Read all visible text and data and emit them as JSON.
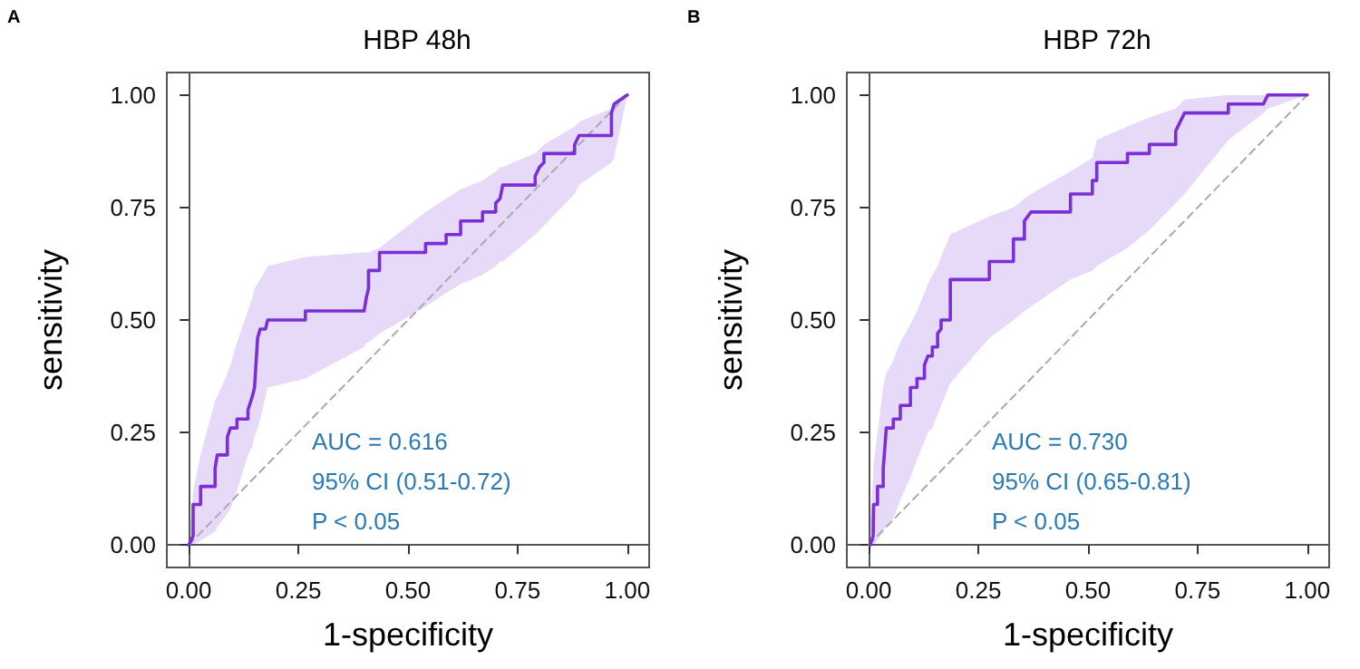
{
  "chart_data": [
    {
      "type": "line",
      "title": "HBP 48h",
      "xlabel": "1-specificity",
      "ylabel": "sensitivity",
      "annotations": [
        "A",
        "AUC = 0.616",
        "95% CI (0.51-0.72)",
        "P < 0.05"
      ],
      "xlim": [
        -0.05,
        1.05
      ],
      "ylim": [
        -0.05,
        1.05
      ],
      "xticks": [
        {
          "value": 0,
          "label": "0.00"
        },
        {
          "value": 0.25,
          "label": "0.25"
        },
        {
          "value": 0.5,
          "label": "0.50"
        },
        {
          "value": 0.75,
          "label": "0.75"
        },
        {
          "value": 1,
          "label": "1.00"
        }
      ],
      "yticks": [
        {
          "value": 0,
          "label": "0.00"
        },
        {
          "value": 0.25,
          "label": "0.25"
        },
        {
          "value": 0.5,
          "label": "0.50"
        },
        {
          "value": 0.75,
          "label": "0.75"
        },
        {
          "value": 1,
          "label": "1.00"
        }
      ],
      "series": [
        {
          "type": "line",
          "color": "#aaaaaa",
          "line_style": "dashed",
          "x": [
            0,
            1
          ],
          "values": [
            0,
            1
          ]
        },
        {
          "type": "line",
          "color": "#7b2fd6",
          "line_style": "solid",
          "x": [
            0,
            0.01,
            0.01,
            0.027,
            0.027,
            0.06,
            0.06,
            0.065,
            0.088,
            0.088,
            0.095,
            0.11,
            0.11,
            0.135,
            0.135,
            0.145,
            0.15,
            0.157,
            0.163,
            0.175,
            0.18,
            0.266,
            0.266,
            0.4,
            0.405,
            0.41,
            0.41,
            0.435,
            0.435,
            0.54,
            0.54,
            0.587,
            0.587,
            0.62,
            0.62,
            0.67,
            0.67,
            0.7,
            0.7,
            0.71,
            0.716,
            0.79,
            0.79,
            0.8,
            0.81,
            0.81,
            0.88,
            0.88,
            0.89,
            0.964,
            0.964,
            0.97,
            1
          ],
          "values": [
            0,
            0.02,
            0.09,
            0.09,
            0.13,
            0.13,
            0.17,
            0.2,
            0.2,
            0.24,
            0.26,
            0.26,
            0.28,
            0.28,
            0.3,
            0.33,
            0.35,
            0.46,
            0.48,
            0.48,
            0.5,
            0.5,
            0.52,
            0.52,
            0.55,
            0.57,
            0.61,
            0.61,
            0.65,
            0.65,
            0.67,
            0.67,
            0.69,
            0.69,
            0.72,
            0.72,
            0.74,
            0.74,
            0.76,
            0.77,
            0.8,
            0.8,
            0.82,
            0.84,
            0.85,
            0.87,
            0.87,
            0.89,
            0.91,
            0.91,
            0.96,
            0.98,
            1
          ],
          "lower": [
            0,
            0,
            0,
            0.01,
            0.01,
            0.03,
            0.03,
            0.04,
            0.07,
            0.07,
            0.08,
            0.12,
            0.12,
            0.2,
            0.2,
            0.22,
            0.24,
            0.26,
            0.28,
            0.33,
            0.35,
            0.37,
            0.37,
            0.44,
            0.45,
            0.45,
            0.45,
            0.47,
            0.47,
            0.53,
            0.53,
            0.56,
            0.56,
            0.58,
            0.58,
            0.6,
            0.6,
            0.62,
            0.62,
            0.63,
            0.63,
            0.69,
            0.69,
            0.7,
            0.71,
            0.71,
            0.78,
            0.78,
            0.8,
            0.85,
            0.85,
            0.86,
            1
          ],
          "upper": [
            0,
            0.12,
            0.12,
            0.2,
            0.2,
            0.32,
            0.32,
            0.33,
            0.38,
            0.38,
            0.4,
            0.45,
            0.45,
            0.52,
            0.52,
            0.55,
            0.57,
            0.58,
            0.59,
            0.61,
            0.62,
            0.64,
            0.64,
            0.65,
            0.65,
            0.65,
            0.65,
            0.66,
            0.66,
            0.74,
            0.74,
            0.77,
            0.77,
            0.79,
            0.79,
            0.81,
            0.81,
            0.83,
            0.83,
            0.84,
            0.84,
            0.87,
            0.87,
            0.88,
            0.89,
            0.89,
            0.93,
            0.93,
            0.94,
            0.97,
            0.97,
            0.98,
            1
          ]
        }
      ]
    },
    {
      "type": "line",
      "title": "HBP 72h",
      "xlabel": "1-specificity",
      "ylabel": "sensitivity",
      "annotations": [
        "B",
        "AUC = 0.730",
        "95% CI (0.65-0.81)",
        "P < 0.05"
      ],
      "xlim": [
        -0.05,
        1.05
      ],
      "ylim": [
        -0.05,
        1.05
      ],
      "xticks": [
        {
          "value": 0,
          "label": "0.00"
        },
        {
          "value": 0.25,
          "label": "0.25"
        },
        {
          "value": 0.5,
          "label": "0.50"
        },
        {
          "value": 0.75,
          "label": "0.75"
        },
        {
          "value": 1,
          "label": "1.00"
        }
      ],
      "yticks": [
        {
          "value": 0,
          "label": "0.00"
        },
        {
          "value": 0.25,
          "label": "0.25"
        },
        {
          "value": 0.5,
          "label": "0.50"
        },
        {
          "value": 0.75,
          "label": "0.75"
        },
        {
          "value": 1,
          "label": "1.00"
        }
      ],
      "series": [
        {
          "type": "line",
          "color": "#aaaaaa",
          "line_style": "dashed",
          "x": [
            0,
            1
          ],
          "values": [
            0,
            1
          ]
        },
        {
          "type": "line",
          "color": "#7b2fd6",
          "line_style": "solid",
          "x": [
            0.003,
            0.01,
            0.011,
            0.02,
            0.02,
            0.033,
            0.033,
            0.037,
            0.04,
            0.056,
            0.056,
            0.072,
            0.072,
            0.095,
            0.095,
            0.11,
            0.11,
            0.127,
            0.127,
            0.135,
            0.145,
            0.145,
            0.157,
            0.157,
            0.165,
            0.165,
            0.186,
            0.186,
            0.275,
            0.275,
            0.33,
            0.33,
            0.355,
            0.355,
            0.37,
            0.46,
            0.46,
            0.51,
            0.51,
            0.52,
            0.52,
            0.59,
            0.59,
            0.64,
            0.64,
            0.7,
            0.7,
            0.71,
            0.72,
            0.82,
            0.82,
            0.9,
            0.91,
            1
          ],
          "values": [
            0,
            0.02,
            0.09,
            0.09,
            0.13,
            0.13,
            0.17,
            0.22,
            0.26,
            0.26,
            0.28,
            0.28,
            0.31,
            0.31,
            0.35,
            0.35,
            0.37,
            0.37,
            0.4,
            0.42,
            0.42,
            0.44,
            0.44,
            0.47,
            0.48,
            0.5,
            0.5,
            0.59,
            0.59,
            0.63,
            0.63,
            0.68,
            0.68,
            0.72,
            0.74,
            0.74,
            0.78,
            0.78,
            0.81,
            0.81,
            0.85,
            0.85,
            0.87,
            0.87,
            0.89,
            0.89,
            0.92,
            0.94,
            0.96,
            0.96,
            0.98,
            0.98,
            1,
            1
          ],
          "lower": [
            0,
            0,
            0,
            0.01,
            0.01,
            0.03,
            0.03,
            0.04,
            0.04,
            0.06,
            0.06,
            0.1,
            0.1,
            0.15,
            0.15,
            0.19,
            0.19,
            0.23,
            0.23,
            0.25,
            0.26,
            0.26,
            0.29,
            0.29,
            0.31,
            0.31,
            0.36,
            0.36,
            0.46,
            0.46,
            0.5,
            0.5,
            0.52,
            0.52,
            0.53,
            0.59,
            0.59,
            0.61,
            0.61,
            0.62,
            0.62,
            0.66,
            0.66,
            0.7,
            0.7,
            0.76,
            0.76,
            0.77,
            0.78,
            0.9,
            0.9,
            0.96,
            0.97,
            1
          ],
          "upper": [
            0.05,
            0.15,
            0.18,
            0.25,
            0.25,
            0.35,
            0.35,
            0.37,
            0.38,
            0.41,
            0.41,
            0.45,
            0.45,
            0.49,
            0.49,
            0.52,
            0.52,
            0.56,
            0.56,
            0.58,
            0.6,
            0.6,
            0.62,
            0.62,
            0.64,
            0.64,
            0.69,
            0.69,
            0.73,
            0.73,
            0.75,
            0.75,
            0.77,
            0.77,
            0.78,
            0.83,
            0.83,
            0.86,
            0.86,
            0.9,
            0.9,
            0.93,
            0.93,
            0.95,
            0.95,
            0.97,
            0.97,
            0.98,
            0.99,
            1,
            1,
            1,
            1,
            1
          ]
        }
      ]
    }
  ]
}
